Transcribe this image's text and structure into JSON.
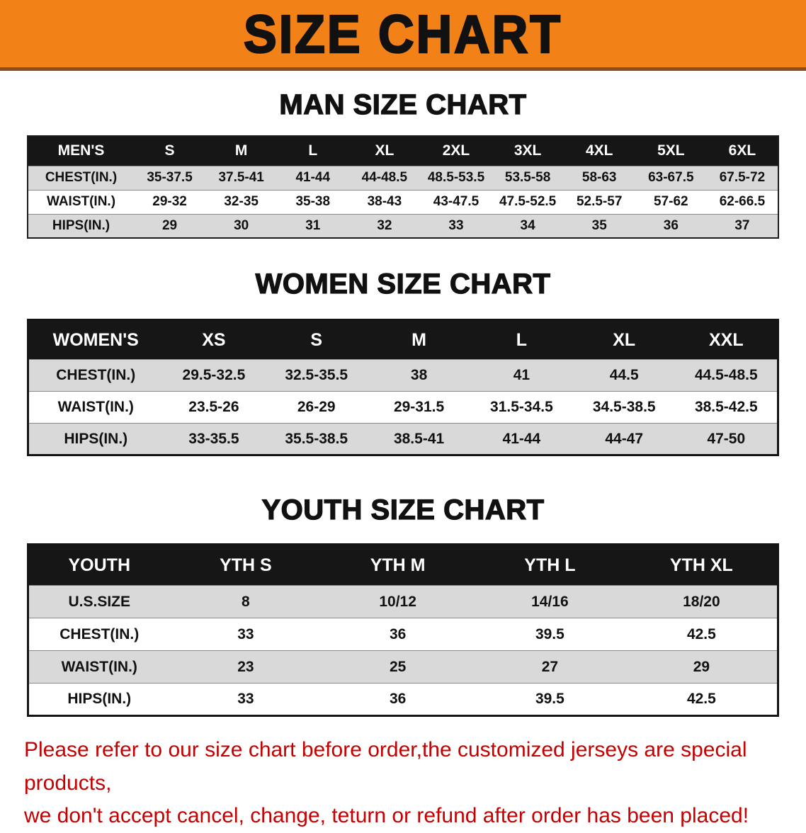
{
  "banner": {
    "title": "SIZE CHART"
  },
  "chart_data": [
    {
      "type": "table",
      "title": "MAN SIZE CHART",
      "header": [
        "MEN'S",
        "S",
        "M",
        "L",
        "XL",
        "2XL",
        "3XL",
        "4XL",
        "5XL",
        "6XL"
      ],
      "rows": [
        [
          "CHEST(IN.)",
          "35-37.5",
          "37.5-41",
          "41-44",
          "44-48.5",
          "48.5-53.5",
          "53.5-58",
          "58-63",
          "63-67.5",
          "67.5-72"
        ],
        [
          "WAIST(IN.)",
          "29-32",
          "32-35",
          "35-38",
          "38-43",
          "43-47.5",
          "47.5-52.5",
          "52.5-57",
          "57-62",
          "62-66.5"
        ],
        [
          "HIPS(IN.)",
          "29",
          "30",
          "31",
          "32",
          "33",
          "34",
          "35",
          "36",
          "37"
        ]
      ]
    },
    {
      "type": "table",
      "title": "WOMEN SIZE CHART",
      "header": [
        "WOMEN'S",
        "XS",
        "S",
        "M",
        "L",
        "XL",
        "XXL"
      ],
      "rows": [
        [
          "CHEST(IN.)",
          "29.5-32.5",
          "32.5-35.5",
          "38",
          "41",
          "44.5",
          "44.5-48.5"
        ],
        [
          "WAIST(IN.)",
          "23.5-26",
          "26-29",
          "29-31.5",
          "31.5-34.5",
          "34.5-38.5",
          "38.5-42.5"
        ],
        [
          "HIPS(IN.)",
          "33-35.5",
          "35.5-38.5",
          "38.5-41",
          "41-44",
          "44-47",
          "47-50"
        ]
      ]
    },
    {
      "type": "table",
      "title": "YOUTH SIZE CHART",
      "header": [
        "YOUTH",
        "YTH S",
        "YTH M",
        "YTH L",
        "YTH XL"
      ],
      "rows": [
        [
          "U.S.SIZE",
          "8",
          "10/12",
          "14/16",
          "18/20"
        ],
        [
          "CHEST(IN.)",
          "33",
          "36",
          "39.5",
          "42.5"
        ],
        [
          "WAIST(IN.)",
          "23",
          "25",
          "27",
          "29"
        ],
        [
          "HIPS(IN.)",
          "33",
          "36",
          "39.5",
          "42.5"
        ]
      ]
    }
  ],
  "footer": {
    "line1": "Please refer to our size chart before order,the customized jerseys are special products,",
    "line2": "we don't accept cancel, change, teturn or refund after order has been placed!"
  },
  "colors": {
    "banner_orange": "#F28218",
    "banner_edge": "#8E4D1B",
    "header_black": "#161616",
    "row_gray": "#D9D9D9",
    "note_red": "#C40000",
    "text_black": "#111111"
  }
}
